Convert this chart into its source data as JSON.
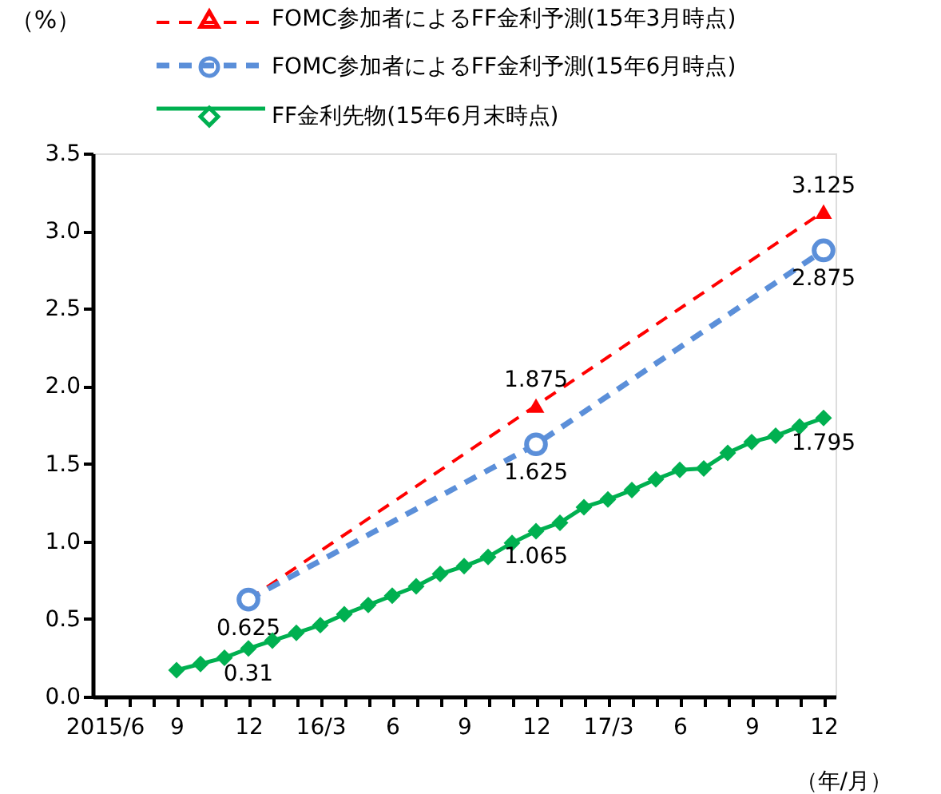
{
  "chart_data": {
    "type": "line",
    "ylabel": "（%）",
    "xlabel": "（年/月）",
    "categories": [
      "2015/6",
      null,
      null,
      "9",
      null,
      null,
      "12",
      null,
      null,
      "16/3",
      null,
      null,
      "6",
      null,
      null,
      "9",
      null,
      null,
      "12",
      null,
      null,
      "17/3",
      null,
      null,
      "6",
      null,
      null,
      "9",
      null,
      null,
      "12"
    ],
    "series": [
      {
        "name": "FOMC参加者によるFF金利予測(15年3月時点)",
        "color": "#ff0000",
        "marker": "triangle",
        "line_style": "dashed",
        "values": [
          null,
          null,
          null,
          null,
          null,
          null,
          0.625,
          null,
          null,
          null,
          null,
          null,
          null,
          null,
          null,
          null,
          null,
          null,
          1.875,
          null,
          null,
          null,
          null,
          null,
          null,
          null,
          null,
          null,
          null,
          null,
          3.125
        ],
        "value_labels": [
          null,
          null,
          null,
          null,
          null,
          null,
          null,
          null,
          null,
          null,
          null,
          null,
          null,
          null,
          null,
          null,
          null,
          null,
          "1.875",
          null,
          null,
          null,
          null,
          null,
          null,
          null,
          null,
          null,
          null,
          null,
          "3.125"
        ]
      },
      {
        "name": "FOMC参加者によるFF金利予測(15年6月時点)",
        "color": "#5b8fd9",
        "marker": "circle",
        "line_style": "dashed",
        "values": [
          null,
          null,
          null,
          null,
          null,
          null,
          0.625,
          null,
          null,
          null,
          null,
          null,
          null,
          null,
          null,
          null,
          null,
          null,
          1.625,
          null,
          null,
          null,
          null,
          null,
          null,
          null,
          null,
          null,
          null,
          null,
          2.875
        ],
        "value_labels": [
          null,
          null,
          null,
          null,
          null,
          null,
          "0.625",
          null,
          null,
          null,
          null,
          null,
          null,
          null,
          null,
          null,
          null,
          null,
          "1.625",
          null,
          null,
          null,
          null,
          null,
          null,
          null,
          null,
          null,
          null,
          null,
          "2.875"
        ]
      },
      {
        "name": "FF金利先物(15年6月末時点)",
        "color": "#00b050",
        "marker": "diamond",
        "line_style": "solid",
        "values": [
          null,
          null,
          null,
          0.17,
          0.21,
          0.25,
          0.31,
          0.36,
          0.41,
          0.46,
          0.53,
          0.59,
          0.65,
          0.71,
          0.79,
          0.84,
          0.9,
          0.99,
          1.065,
          1.12,
          1.22,
          1.27,
          1.33,
          1.4,
          1.46,
          1.47,
          1.57,
          1.64,
          1.68,
          1.74,
          1.795
        ],
        "value_labels": [
          null,
          null,
          null,
          null,
          null,
          null,
          "0.31",
          null,
          null,
          null,
          null,
          null,
          null,
          null,
          null,
          null,
          null,
          null,
          "1.065",
          null,
          null,
          null,
          null,
          null,
          null,
          null,
          null,
          null,
          null,
          null,
          "1.795"
        ]
      }
    ],
    "ylim": [
      0,
      3.5
    ],
    "yticks": [
      {
        "value": 0,
        "label": "0.0"
      },
      {
        "value": 0.5,
        "label": "0.5"
      },
      {
        "value": 1,
        "label": "1.0"
      },
      {
        "value": 1.5,
        "label": "1.5"
      },
      {
        "value": 2,
        "label": "2.0"
      },
      {
        "value": 2.5,
        "label": "2.5"
      },
      {
        "value": 3,
        "label": "3.0"
      },
      {
        "value": 3.5,
        "label": "3.5"
      }
    ],
    "grid": false,
    "legend": "top left"
  }
}
